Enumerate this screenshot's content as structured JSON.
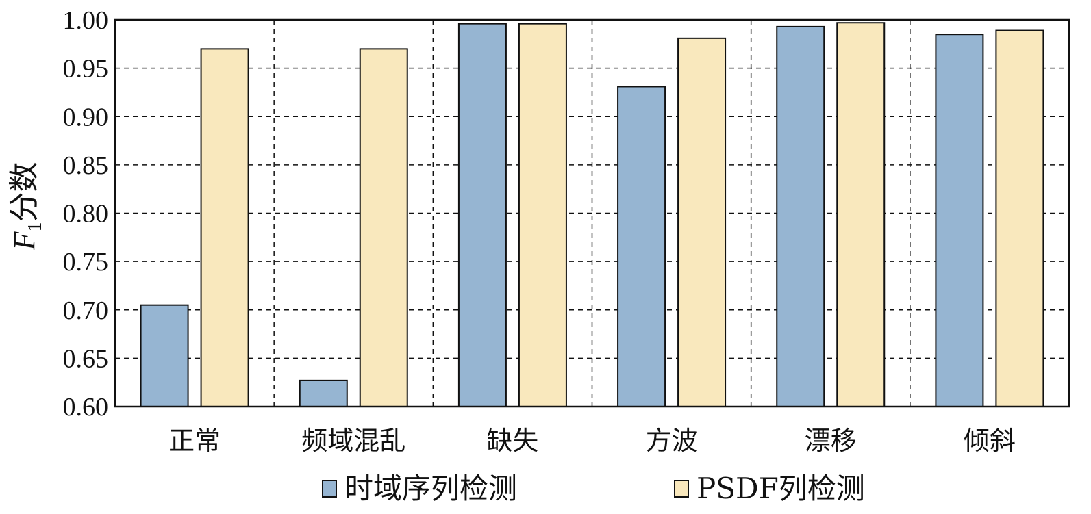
{
  "colors": {
    "series1": "#96b5d2",
    "series2": "#f9e8bd",
    "stroke": "#111111",
    "grid": "#111111"
  },
  "chart_data": {
    "type": "bar",
    "title": "",
    "xlabel": "",
    "ylabel": {
      "main": "F",
      "sub": "1",
      "rest": "分数"
    },
    "ylim": [
      0.6,
      1.0
    ],
    "yticks": [
      "0.60",
      "0.65",
      "0.70",
      "0.75",
      "0.80",
      "0.85",
      "0.90",
      "0.95",
      "1.00"
    ],
    "categories": [
      "正常",
      "频域混乱",
      "缺失",
      "方波",
      "漂移",
      "倾斜"
    ],
    "series": [
      {
        "name": "时域序列检测",
        "values": [
          0.705,
          0.627,
          0.996,
          0.931,
          0.993,
          0.985
        ]
      },
      {
        "name": "PSDF列检测",
        "values": [
          0.97,
          0.97,
          0.996,
          0.981,
          0.997,
          0.989
        ]
      }
    ],
    "grid": true,
    "legend": "bottom-center"
  }
}
